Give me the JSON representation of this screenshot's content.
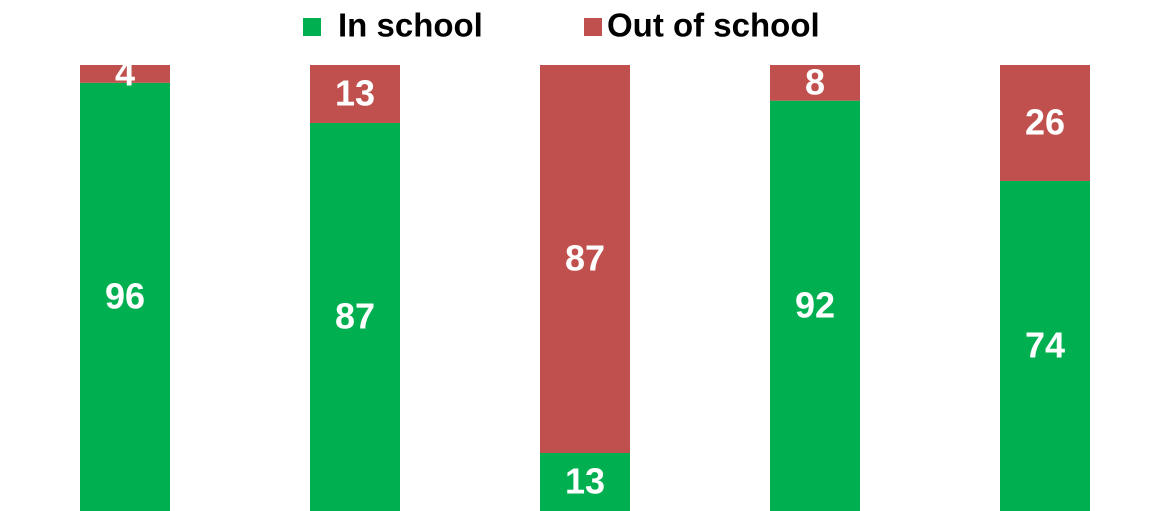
{
  "chart_data": {
    "type": "bar",
    "stacked": true,
    "categories": [
      null,
      null,
      null,
      null,
      null
    ],
    "series": [
      {
        "name": "In school",
        "color": "#00b050",
        "values": [
          96,
          87,
          13,
          92,
          74
        ]
      },
      {
        "name": "Out of school",
        "color": "#c0504d",
        "values": [
          4,
          13,
          87,
          8,
          26
        ]
      }
    ],
    "ylim": [
      0,
      100
    ],
    "legend": "top"
  }
}
